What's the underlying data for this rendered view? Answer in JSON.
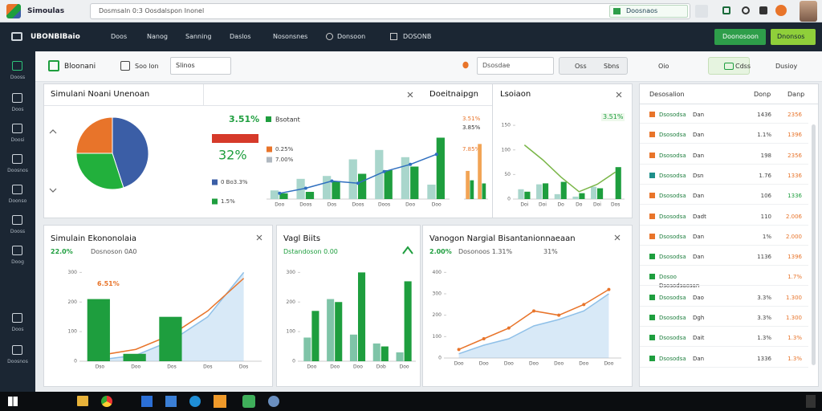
{
  "browser": {
    "title": "Simoulas",
    "address": "Dosmsaln 0:3 Oosdalspon Inonel",
    "tab": "Doosnaos"
  },
  "nav": {
    "brand": "UBONBIBaio",
    "items": [
      "Doos",
      "Nanog",
      "Sanning",
      "Daslos",
      "Nosonsnes",
      "Donsoon",
      "DOSONB"
    ],
    "buttons": [
      "Doonosoon",
      "Dnonsos"
    ]
  },
  "sidebar": [
    "Dooss",
    "Doos",
    "Doosi",
    "Doosnos",
    "Doonso",
    "Dooss",
    "Doog",
    "Doos",
    "Doosnos"
  ],
  "toolbar": {
    "sheet": "Bloonani",
    "open": "Soo lon",
    "select": "Slinos",
    "search": "Dsosdae",
    "buttons": [
      "Oss",
      "Sbns",
      "Oio",
      "Cdss",
      "Dusioy"
    ]
  },
  "overview": {
    "title": "Simulani Noani Unenoan",
    "pie": {
      "values": [
        45,
        30,
        25
      ],
      "colors": [
        "#3b5ea6",
        "#22b03c",
        "#e8742a"
      ]
    },
    "stats": {
      "top": "3.51%",
      "legend": "Bsotant",
      "big": "32%",
      "items": [
        "0.25%",
        "7.00%",
        "0 Bo3.3%",
        "1.5%"
      ],
      "colors": [
        "#e8742a",
        "#b0b8c0",
        "#3b5ea6",
        "#1e9e3e"
      ]
    },
    "combo": {
      "categories": [
        "Doo",
        "Doos",
        "Dos",
        "Doos",
        "Doos",
        "Doo",
        "Doo"
      ],
      "ylim": [
        0,
        100
      ],
      "series": [
        {
          "type": "bar",
          "color": "#a9d6cc",
          "values": [
            12,
            28,
            32,
            55,
            68,
            58,
            20
          ]
        },
        {
          "type": "bar",
          "color": "#1e9e3e",
          "values": [
            8,
            10,
            25,
            35,
            40,
            45,
            85
          ]
        },
        {
          "type": "line",
          "color": "#2f6fbf",
          "values": [
            8,
            15,
            25,
            22,
            38,
            48,
            62
          ],
          "markers": true
        }
      ]
    },
    "side_title": "Doeitnaipgn",
    "side_labels": [
      "3.51%",
      "3.85%",
      "7.85%"
    ],
    "side_chart": {
      "categories": [
        null,
        null
      ],
      "ylim": [
        0,
        100
      ],
      "series": [
        {
          "type": "bar",
          "color": "#f2a455",
          "values": [
            45,
            88
          ]
        },
        {
          "type": "bar",
          "color": "#1e9e3e",
          "values": [
            30,
            25
          ]
        }
      ]
    }
  },
  "trend": {
    "title": "Lsoiaon",
    "badge": "3.51%",
    "chart": {
      "categories": [
        "Doi",
        "Doi",
        "Do",
        "Do",
        "Doi",
        "Dos"
      ],
      "ylim": [
        0,
        160
      ],
      "yticks": [
        0,
        50,
        100,
        150
      ],
      "series": [
        {
          "type": "bar",
          "color": "#a9d6cc",
          "values": [
            20,
            30,
            10,
            5,
            25,
            0
          ]
        },
        {
          "type": "bar",
          "color": "#1e9e3e",
          "values": [
            15,
            32,
            35,
            12,
            22,
            65
          ]
        },
        {
          "type": "line",
          "color": "#7ab648",
          "values": [
            110,
            80,
            45,
            15,
            30,
            55
          ]
        }
      ]
    }
  },
  "economy": {
    "title": "Simulain Ekononolaia",
    "sub": [
      "22.0%",
      "Dosnoson 0A0"
    ],
    "note": "6.51%",
    "chart": {
      "categories": [
        "Dso",
        "Doo",
        "Dos",
        "Dos",
        "Dos"
      ],
      "ylim": [
        0,
        320
      ],
      "yticks": [
        0,
        100,
        200,
        300
      ],
      "series": [
        {
          "type": "area",
          "color": "#8fc0e8",
          "values": [
            5,
            20,
            70,
            150,
            300
          ]
        },
        {
          "type": "line",
          "color": "#e8742a",
          "values": [
            20,
            40,
            90,
            170,
            280
          ]
        },
        {
          "type": "bar",
          "color": "#1e9e3e",
          "values": [
            210,
            25,
            150,
            0,
            0
          ]
        }
      ]
    }
  },
  "bits": {
    "title": "Vagl Biits",
    "sub": "Dstandoson 0.00",
    "chart": {
      "categories": [
        "Doo",
        "Doo",
        "Doo",
        "Dob",
        "Doo"
      ],
      "ylim": [
        0,
        320
      ],
      "yticks": [
        0,
        100,
        200,
        300
      ],
      "series": [
        {
          "type": "bar",
          "color": "#7fc4a8",
          "values": [
            80,
            210,
            90,
            60,
            30
          ]
        },
        {
          "type": "bar",
          "color": "#1e9e3e",
          "values": [
            170,
            200,
            300,
            50,
            270
          ]
        }
      ]
    }
  },
  "margin": {
    "title": "Vanogon Nargial Bisantanionnaeaan",
    "sub": [
      "2.00%",
      "Dosonoos 1.31%",
      "31%"
    ],
    "chart": {
      "categories": [
        "Doo",
        "Doo",
        "Doo",
        "Doo",
        "Doo",
        "Doo",
        "Doo"
      ],
      "ylim": [
        0,
        420
      ],
      "yticks": [
        0,
        100,
        200,
        300,
        400
      ],
      "series": [
        {
          "type": "area",
          "color": "#8fc0e8",
          "values": [
            20,
            60,
            90,
            150,
            180,
            220,
            300
          ]
        },
        {
          "type": "line",
          "color": "#e8742a",
          "values": [
            40,
            90,
            140,
            220,
            200,
            250,
            320
          ],
          "markers": true
        }
      ]
    }
  },
  "list": {
    "header": [
      "Desosalion",
      "Donp",
      "Danp"
    ],
    "rows": [
      {
        "color": "#e8742a",
        "name": "Dsosodsa",
        "tag": "Dan",
        "a": "1436",
        "b": "2356",
        "bcolor": "#e8742a"
      },
      {
        "color": "#e8742a",
        "name": "Dsosodsa",
        "tag": "Dan",
        "a": "1.1%",
        "b": "1396",
        "bcolor": "#e8742a"
      },
      {
        "color": "#e8742a",
        "name": "Dsosodsa",
        "tag": "Dan",
        "a": "198",
        "b": "2356",
        "bcolor": "#e8742a"
      },
      {
        "color": "#1e8f8a",
        "name": "Dsosodsa",
        "tag": "Dsn",
        "a": "1.76",
        "b": "1336",
        "bcolor": "#e8742a"
      },
      {
        "color": "#e8742a",
        "name": "Dsosodsa",
        "tag": "Dan",
        "a": "106",
        "b": "1336",
        "bcolor": "#1e9e3e"
      },
      {
        "color": "#e8742a",
        "name": "Dsosodsa",
        "tag": "Dadt",
        "a": "110",
        "b": "2.006",
        "bcolor": "#e8742a"
      },
      {
        "color": "#e8742a",
        "name": "Dsosodsa",
        "tag": "Dan",
        "a": "1%",
        "b": "2.000",
        "bcolor": "#e8742a"
      },
      {
        "color": "#1e9e3e",
        "name": "Dsosodsa",
        "tag": "Dan",
        "a": "1136",
        "b": "1396",
        "bcolor": "#e8742a"
      },
      {
        "color": "#1e9e3e",
        "name": "Dosoo",
        "tag": "Dsosodsaosan",
        "b": "1.7%",
        "bcolor": "#e8742a"
      },
      {
        "color": "#1e9e3e",
        "name": "Dsosodsa",
        "tag": "Dao",
        "a": "3.3%",
        "b": "1.300",
        "bcolor": "#e8742a"
      },
      {
        "color": "#1e9e3e",
        "name": "Dsosodsa",
        "tag": "Dgh",
        "a": "3.3%",
        "b": "1.300",
        "bcolor": "#e8742a"
      },
      {
        "color": "#1e9e3e",
        "name": "Dsosodsa",
        "tag": "Dait",
        "a": "1.3%",
        "b": "1.3%",
        "bcolor": "#e8742a"
      },
      {
        "color": "#1e9e3e",
        "name": "Dsosodsa",
        "tag": "Dan",
        "a": "1336",
        "b": "1.3%",
        "bcolor": "#e8742a"
      }
    ]
  }
}
